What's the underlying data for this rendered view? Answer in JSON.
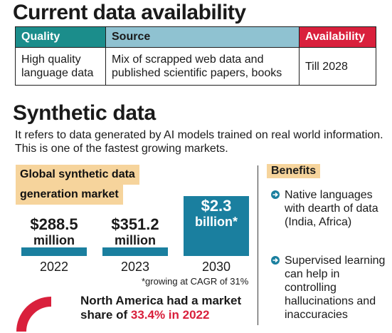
{
  "title": "Current data availability",
  "table": {
    "headers": {
      "quality": "Quality",
      "source": "Source",
      "availability": "Availability"
    },
    "row": {
      "quality": "High quality language data",
      "source": "Mix of scrapped web data and published scientific papers, books",
      "availability": "Till 2028"
    }
  },
  "synthetic": {
    "title": "Synthetic data",
    "description": "It refers to data generated by AI models trained on real world information. This is one of the fastest growing markets."
  },
  "chart_data": {
    "type": "bar",
    "title": "Global synthetic data generation market",
    "categories": [
      "2022",
      "2023",
      "2030"
    ],
    "values": [
      288.5,
      351.2,
      2300
    ],
    "unit": "million USD",
    "value_labels": [
      {
        "amount": "$288.5",
        "unit": "million"
      },
      {
        "amount": "$351.2",
        "unit": "million"
      },
      {
        "amount": "$2.3",
        "unit": "billion*"
      }
    ],
    "note": "*growing at CAGR of 31%"
  },
  "benefits": {
    "title": "Benefits",
    "items": [
      "Native languages with dearth of data (India, Africa)",
      "Supervised learning can help in controlling hallucinations and inaccuracies"
    ]
  },
  "north_america": {
    "text": "North America had a market share of ",
    "highlight": "33.4% in 2022",
    "share": 0.334
  },
  "colors": {
    "teal": "#1b8d8b",
    "light_blue": "#8fc2d1",
    "red": "#d9203c",
    "bar": "#1a7f9f",
    "highlight": "#f6d49c"
  }
}
